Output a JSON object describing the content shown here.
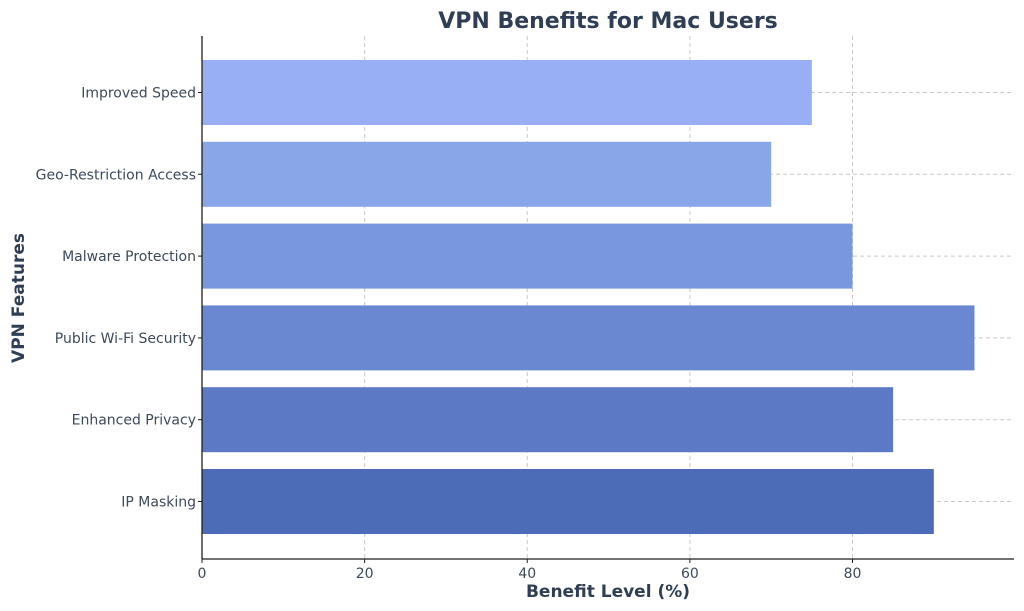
{
  "chart_data": {
    "type": "bar",
    "orientation": "horizontal",
    "title": "VPN Benefits for Mac Users",
    "xlabel": "Benefit Level (%)",
    "ylabel": "VPN Features",
    "categories": [
      "IP Masking",
      "Enhanced Privacy",
      "Public Wi-Fi Security",
      "Malware Protection",
      "Geo-Restriction Access",
      "Improved Speed"
    ],
    "values": [
      90,
      85,
      95,
      80,
      70,
      75
    ],
    "bar_colors": [
      "#4c6cb8",
      "#5b79c5",
      "#6a88d1",
      "#7897dd",
      "#89a6e8",
      "#99aff5"
    ],
    "xlim": [
      0,
      100
    ],
    "xticks": [
      0,
      20,
      40,
      60,
      80
    ],
    "grid": true
  }
}
